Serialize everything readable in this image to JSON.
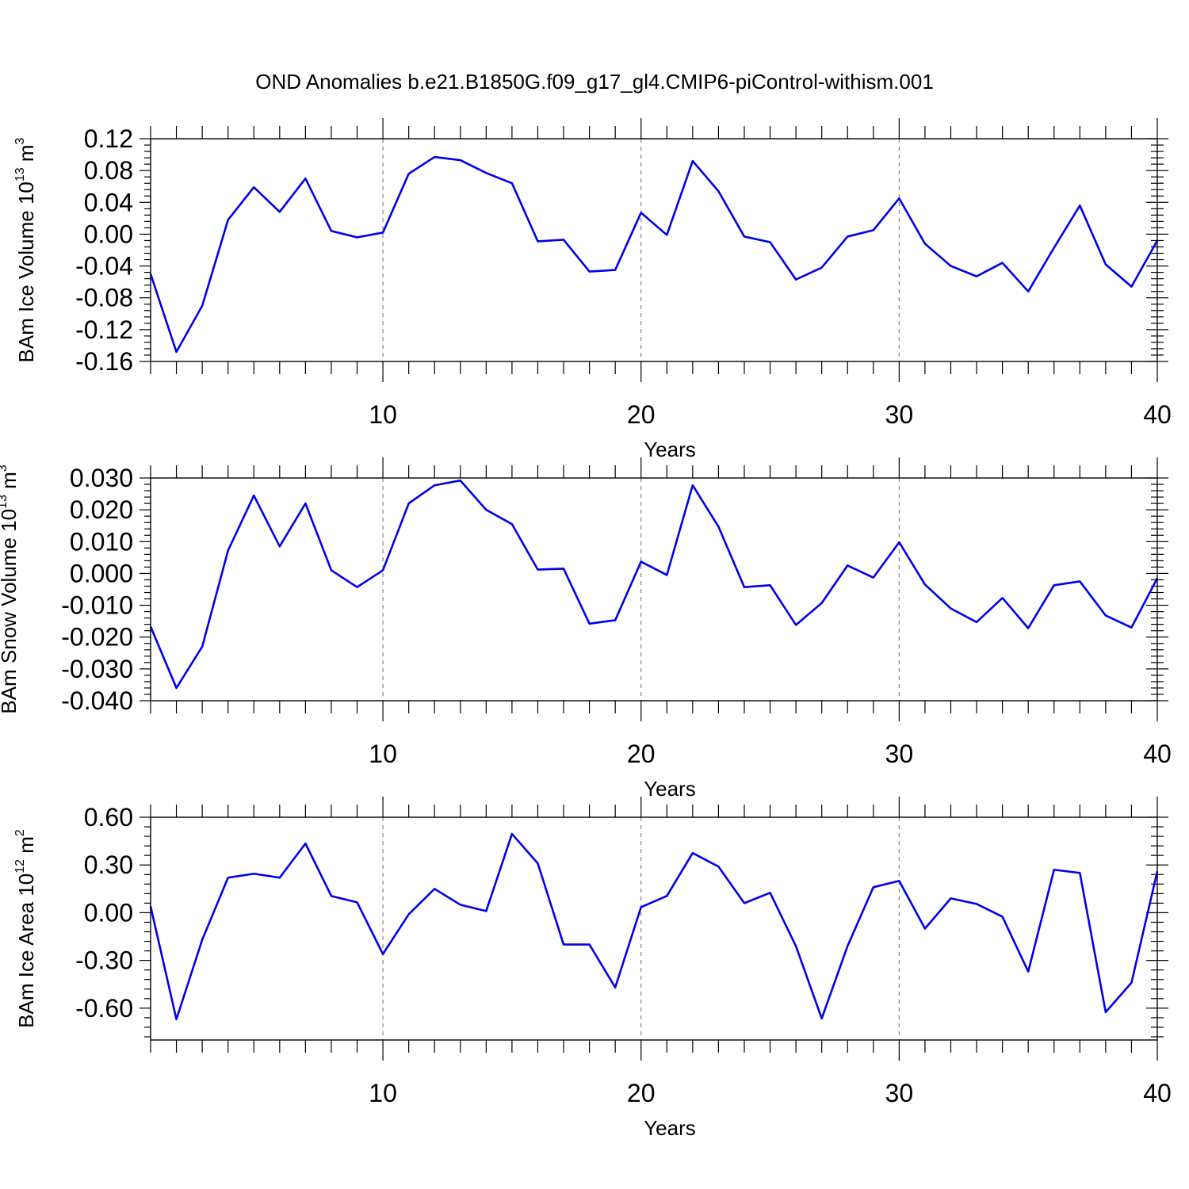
{
  "figure": {
    "title": "OND Anomalies b.e21.B1850G.f09_g17_gl4.CMIP6-piControl-withism.001",
    "line_color": "#0000ee",
    "grid_color": "#888888"
  },
  "chart_data": [
    {
      "type": "line",
      "title": "",
      "ylabel": "BAm Ice Volume 10",
      "ylabel_exp": "13",
      "ylabel_unit": " m",
      "ylabel_unit_exp": "3",
      "xlabel": "Years",
      "xlim": [
        1,
        40
      ],
      "ylim": [
        -0.16,
        0.12
      ],
      "yticks": [
        -0.16,
        -0.12,
        -0.08,
        -0.04,
        0.0,
        0.04,
        0.08,
        0.12
      ],
      "ytick_labels": [
        "-0.16",
        "-0.12",
        "-0.08",
        "-0.04",
        "0.00",
        "0.04",
        "0.08",
        "0.12"
      ],
      "xticks": [
        10,
        20,
        30,
        40
      ],
      "xtick_labels": [
        "10",
        "20",
        "30",
        "40"
      ],
      "grid_x": [
        10,
        20,
        30
      ],
      "x": [
        1,
        2,
        3,
        4,
        5,
        6,
        7,
        8,
        9,
        10,
        11,
        12,
        13,
        14,
        15,
        16,
        17,
        18,
        19,
        20,
        21,
        22,
        23,
        24,
        25,
        26,
        27,
        28,
        29,
        30,
        31,
        32,
        33,
        34,
        35,
        36,
        37,
        38,
        39,
        40
      ],
      "series": [
        {
          "values": [
            -0.05,
            -0.148,
            -0.09,
            0.018,
            0.059,
            0.028,
            0.07,
            0.004,
            -0.004,
            0.002,
            0.076,
            0.097,
            0.093,
            0.077,
            0.064,
            -0.009,
            -0.007,
            -0.047,
            -0.045,
            0.027,
            -0.001,
            0.092,
            0.054,
            -0.003,
            -0.01,
            -0.057,
            -0.042,
            -0.003,
            0.005,
            0.045,
            -0.012,
            -0.04,
            -0.053,
            -0.036,
            -0.072,
            -0.017,
            0.036,
            -0.038,
            -0.066,
            -0.008
          ]
        }
      ]
    },
    {
      "type": "line",
      "title": "",
      "ylabel": "BAm Snow Volume 10",
      "ylabel_exp": "13",
      "ylabel_unit": " m",
      "ylabel_unit_exp": "3",
      "xlabel": "Years",
      "xlim": [
        1,
        40
      ],
      "ylim": [
        -0.04,
        0.03
      ],
      "yticks": [
        -0.04,
        -0.03,
        -0.02,
        -0.01,
        0.0,
        0.01,
        0.02,
        0.03
      ],
      "ytick_labels": [
        "-0.040",
        "-0.030",
        "-0.020",
        "-0.010",
        "0.000",
        "0.010",
        "0.020",
        "0.030"
      ],
      "xticks": [
        10,
        20,
        30,
        40
      ],
      "xtick_labels": [
        "10",
        "20",
        "30",
        "40"
      ],
      "grid_x": [
        10,
        20,
        30
      ],
      "x": [
        1,
        2,
        3,
        4,
        5,
        6,
        7,
        8,
        9,
        10,
        11,
        12,
        13,
        14,
        15,
        16,
        17,
        18,
        19,
        20,
        21,
        22,
        23,
        24,
        25,
        26,
        27,
        28,
        29,
        30,
        31,
        32,
        33,
        34,
        35,
        36,
        37,
        38,
        39,
        40
      ],
      "series": [
        {
          "values": [
            -0.0167,
            -0.036,
            -0.023,
            0.0072,
            0.0245,
            0.0085,
            0.022,
            0.001,
            -0.0043,
            0.001,
            0.022,
            0.0277,
            0.0292,
            0.02,
            0.0155,
            0.0012,
            0.0015,
            -0.0158,
            -0.0147,
            0.0037,
            -0.0005,
            0.0277,
            0.0147,
            -0.0043,
            -0.0037,
            -0.0162,
            -0.0093,
            0.0025,
            -0.0013,
            0.0098,
            -0.0035,
            -0.011,
            -0.0153,
            -0.0077,
            -0.0172,
            -0.0037,
            -0.0025,
            -0.0132,
            -0.017,
            -0.0015
          ]
        }
      ]
    },
    {
      "type": "line",
      "title": "",
      "ylabel": "BAm Ice Area 10",
      "ylabel_exp": "12",
      "ylabel_unit": " m",
      "ylabel_unit_exp": "2",
      "xlabel": "Years",
      "xlim": [
        1,
        40
      ],
      "ylim": [
        -0.8,
        0.6
      ],
      "yticks": [
        -0.6,
        -0.3,
        0.0,
        0.3,
        0.6
      ],
      "ytick_labels": [
        "-0.60",
        "-0.30",
        "0.00",
        "0.30",
        "0.60"
      ],
      "xticks": [
        10,
        20,
        30,
        40
      ],
      "xtick_labels": [
        "10",
        "20",
        "30",
        "40"
      ],
      "grid_x": [
        10,
        20,
        30
      ],
      "x": [
        1,
        2,
        3,
        4,
        5,
        6,
        7,
        8,
        9,
        10,
        11,
        12,
        13,
        14,
        15,
        16,
        17,
        18,
        19,
        20,
        21,
        22,
        23,
        24,
        25,
        26,
        27,
        28,
        29,
        30,
        31,
        32,
        33,
        34,
        35,
        36,
        37,
        38,
        39,
        40
      ],
      "series": [
        {
          "values": [
            0.04,
            -0.67,
            -0.17,
            0.22,
            0.245,
            0.22,
            0.435,
            0.105,
            0.065,
            -0.26,
            -0.01,
            0.15,
            0.05,
            0.01,
            0.495,
            0.31,
            -0.2,
            -0.2,
            -0.47,
            0.035,
            0.105,
            0.375,
            0.29,
            0.06,
            0.125,
            -0.21,
            -0.665,
            -0.21,
            0.16,
            0.2,
            -0.1,
            0.09,
            0.055,
            -0.025,
            -0.37,
            0.27,
            0.25,
            -0.625,
            -0.44,
            0.26
          ]
        }
      ]
    }
  ]
}
